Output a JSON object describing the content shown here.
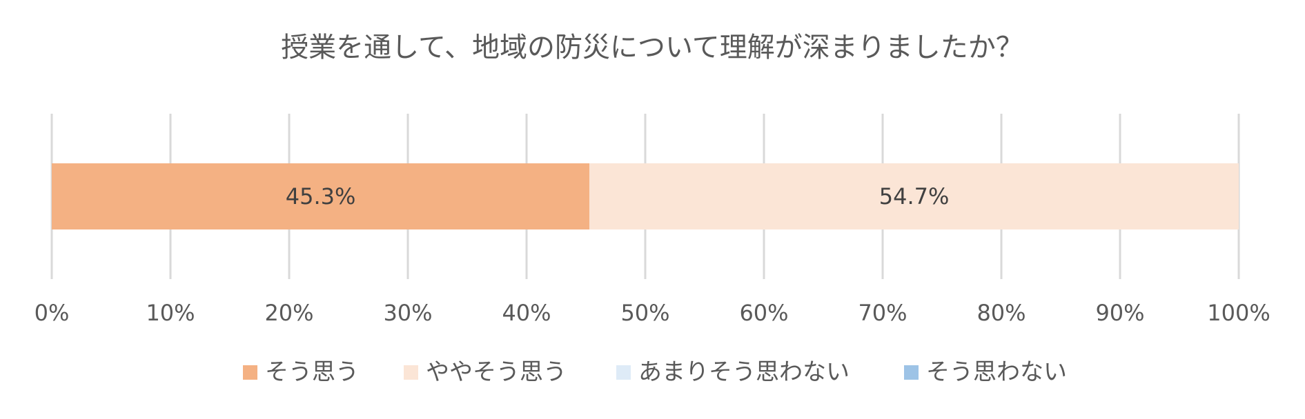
{
  "chart_data": {
    "type": "bar",
    "orientation": "horizontal",
    "stacked": "percent",
    "title": "授業を通して、地域の防災について理解が深まりましたか？",
    "categories": [
      ""
    ],
    "series": [
      {
        "name": "そう思う",
        "values": [
          45.3
        ],
        "label": "45.3%",
        "color": "#F4B183"
      },
      {
        "name": "ややそう思う",
        "values": [
          54.7
        ],
        "label": "54.7%",
        "color": "#FBE5D6"
      },
      {
        "name": "あまりそう思わない",
        "values": [
          0
        ],
        "label": "",
        "color": "#DEEBF7"
      },
      {
        "name": "そう思わない",
        "values": [
          0
        ],
        "label": "",
        "color": "#9DC3E6"
      }
    ],
    "x_ticks": [
      "0%",
      "10%",
      "20%",
      "30%",
      "40%",
      "50%",
      "60%",
      "70%",
      "80%",
      "90%",
      "100%"
    ],
    "xlim": [
      0,
      100
    ],
    "grid": true,
    "legend_position": "bottom"
  }
}
